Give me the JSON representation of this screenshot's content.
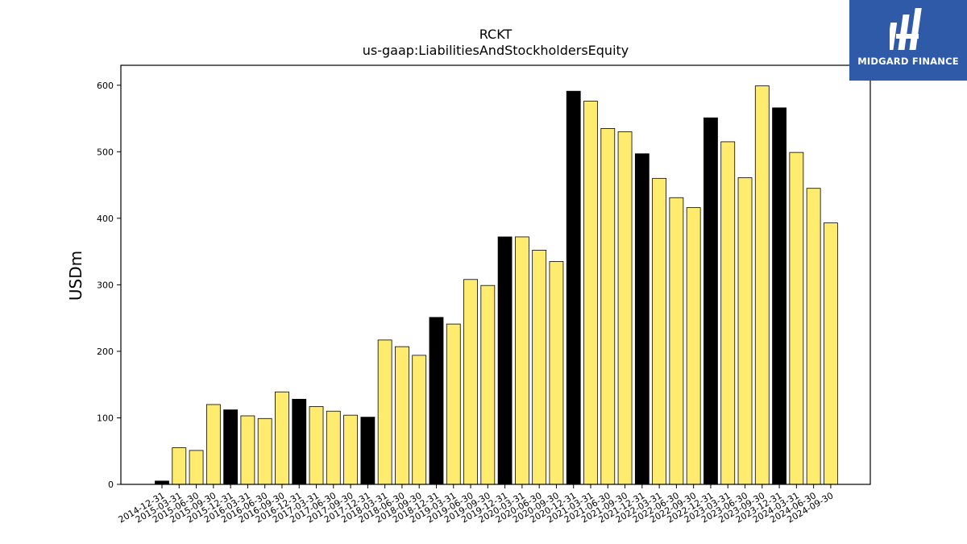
{
  "brand": {
    "name": "MIDGARD FINANCE",
    "bg_color": "#2f5aa8"
  },
  "colors": {
    "highlight": "#000000",
    "normal": "#ffec6e",
    "edge": "#000000"
  },
  "chart_data": {
    "type": "bar",
    "title": "RCKT",
    "subtitle": "us-gaap:LiabilitiesAndStockholdersEquity",
    "xlabel": "",
    "ylabel": "USDm",
    "ylim": [
      0,
      630
    ],
    "yticks": [
      0,
      100,
      200,
      300,
      400,
      500,
      600
    ],
    "grid": false,
    "legend": "none",
    "categories": [
      "2014-12-31",
      "2015-03-31",
      "2015-06-30",
      "2015-09-30",
      "2015-12-31",
      "2016-03-31",
      "2016-06-30",
      "2016-09-30",
      "2016-12-31",
      "2017-03-31",
      "2017-06-30",
      "2017-09-30",
      "2017-12-31",
      "2018-03-31",
      "2018-06-30",
      "2018-09-30",
      "2018-12-31",
      "2019-03-31",
      "2019-06-30",
      "2019-09-30",
      "2019-12-31",
      "2020-03-31",
      "2020-06-30",
      "2020-09-30",
      "2020-12-31",
      "2021-03-31",
      "2021-06-30",
      "2021-09-30",
      "2021-12-31",
      "2022-03-31",
      "2022-06-30",
      "2022-09-30",
      "2022-12-31",
      "2023-03-31",
      "2023-06-30",
      "2023-09-30",
      "2023-12-31",
      "2024-03-31",
      "2024-06-30",
      "2024-09-30"
    ],
    "values": [
      5,
      55,
      51,
      120,
      112,
      103,
      99,
      139,
      128,
      117,
      110,
      104,
      101,
      217,
      207,
      194,
      251,
      241,
      308,
      299,
      372,
      372,
      352,
      335,
      591,
      576,
      535,
      530,
      497,
      460,
      431,
      416,
      551,
      515,
      461,
      599,
      566,
      499,
      445,
      393
    ],
    "highlight_year_end": true
  }
}
